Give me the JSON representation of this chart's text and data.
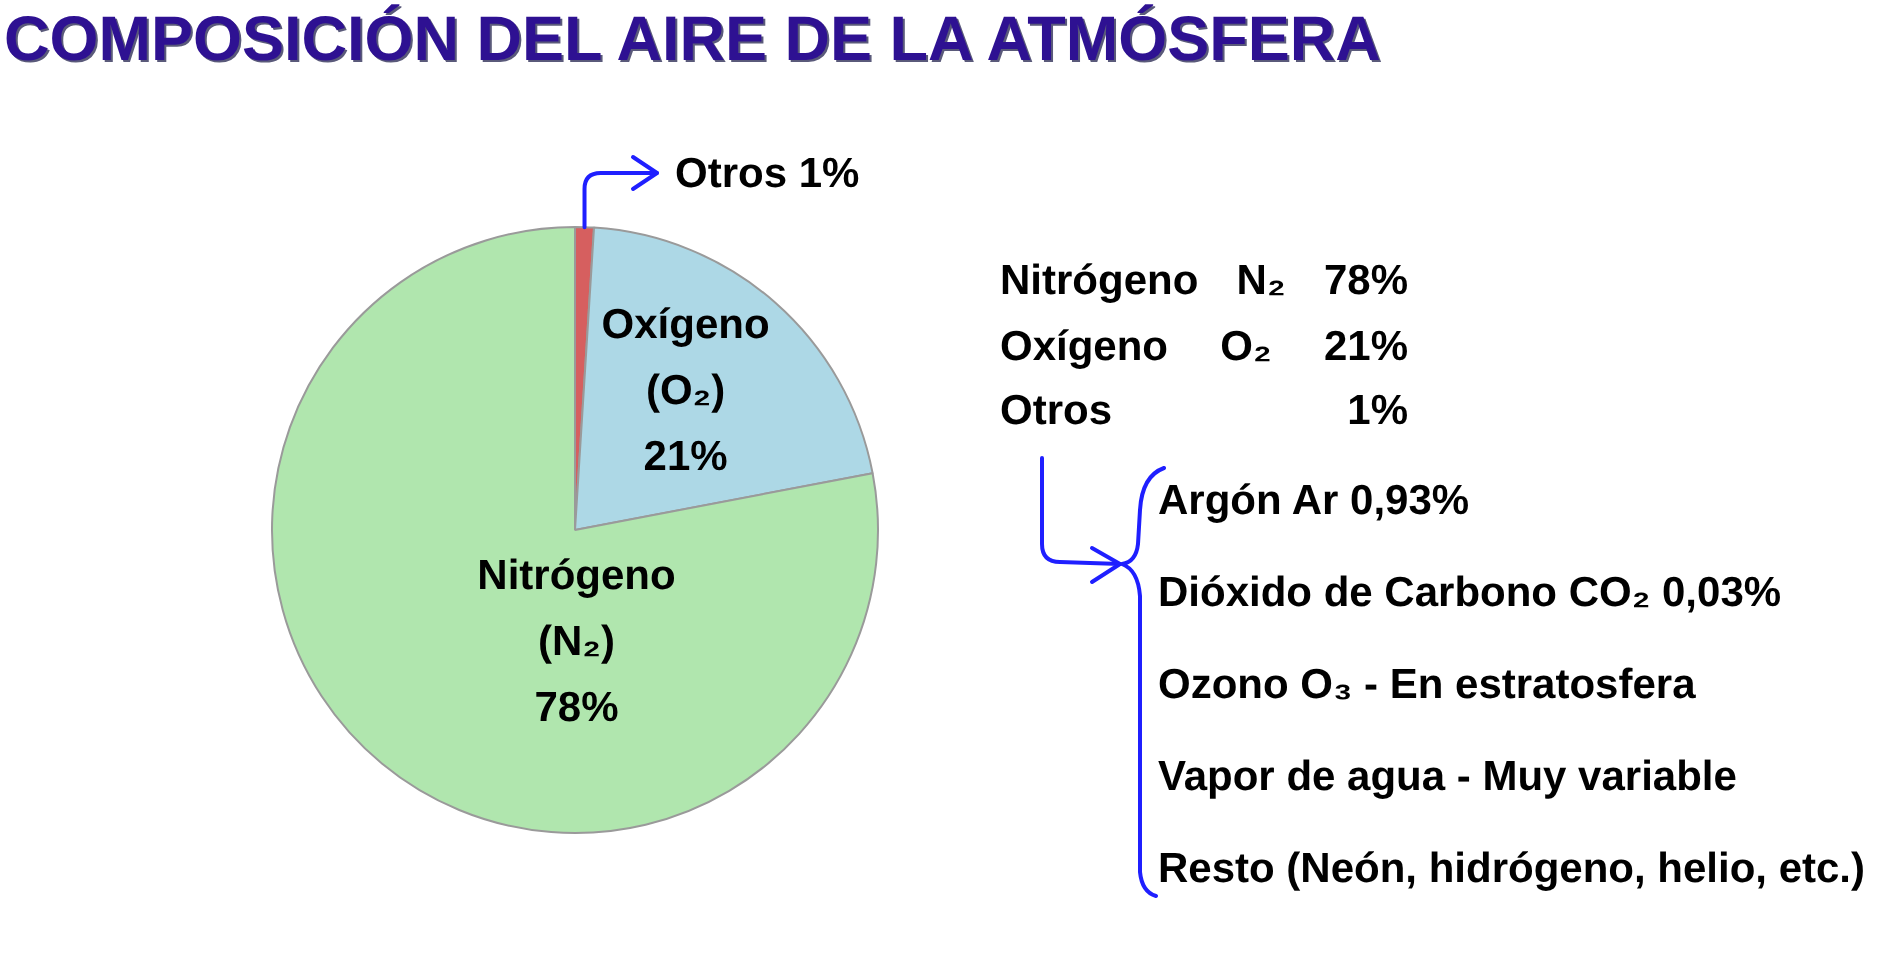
{
  "chart_data": {
    "type": "pie",
    "title": "COMPOSICIÓN DEL AIRE DE LA ATMÓSFERA",
    "categories": [
      "Otros",
      "Oxígeno (O₂)",
      "Nitrógeno (N₂)"
    ],
    "values": [
      1,
      21,
      78
    ],
    "colors": [
      "#d65f5f",
      "#add8e6",
      "#b0e6ae"
    ],
    "value_labels": [
      "1%",
      "21%",
      "78%"
    ],
    "annotations": [
      "Nitrógeno N₂ 78%",
      "Oxígeno O₂ 21%",
      "Otros 1%",
      "Argón Ar 0,93%",
      "Dióxido de Carbono CO₂ 0,03%",
      "Ozono O₃ - En estratosfera",
      "Vapor de agua - Muy variable",
      "Resto (Neón, hidrógeno, helio, etc.)"
    ]
  }
}
